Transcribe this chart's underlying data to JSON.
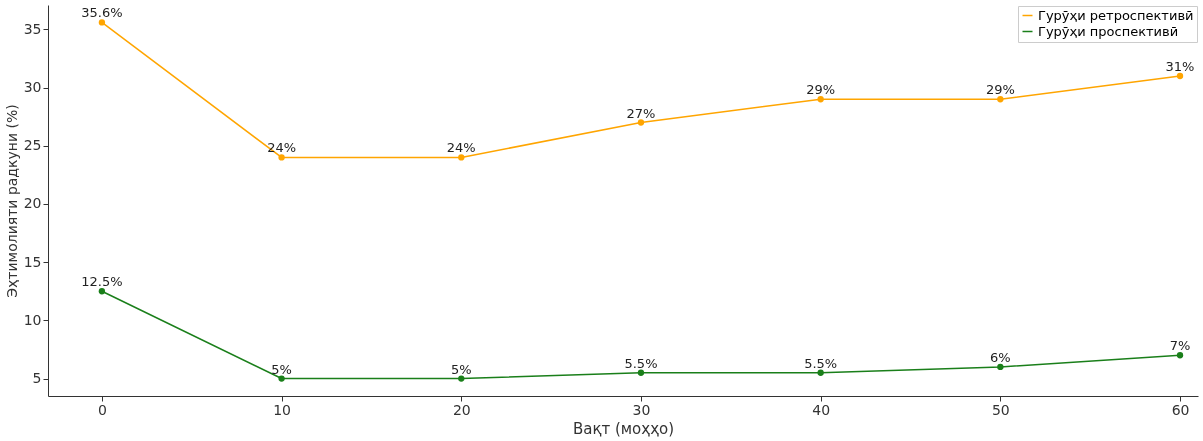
{
  "chart_data": {
    "type": "line",
    "xlabel": "Вақт (моҳҳо)",
    "ylabel": "Эҳтимолияти радкуни (%)",
    "x": [
      0,
      10,
      20,
      30,
      40,
      50,
      60
    ],
    "series": [
      {
        "name": "Гурӯҳи ретроспективӣ",
        "color": "#ffa500",
        "values": [
          35.6,
          24,
          24,
          27,
          29,
          29,
          31
        ],
        "value_labels": [
          "35.6%",
          "24%",
          "24%",
          "27%",
          "29%",
          "29%",
          "31%"
        ]
      },
      {
        "name": "Гурӯҳи проспективӣ",
        "color": "#1a7f1a",
        "values": [
          12.5,
          5,
          5,
          5.5,
          5.5,
          6,
          7
        ],
        "value_labels": [
          "12.5%",
          "5%",
          "5%",
          "5.5%",
          "5.5%",
          "6%",
          "7%"
        ]
      }
    ],
    "xlim": [
      -3,
      61
    ],
    "ylim": [
      3.5,
      37.1
    ],
    "xticks": [
      0,
      10,
      20,
      30,
      40,
      50,
      60
    ],
    "yticks": [
      5,
      10,
      15,
      20,
      25,
      30,
      35
    ],
    "grid": false,
    "legend": "top right",
    "marker": "circle",
    "line_style": "solid"
  }
}
